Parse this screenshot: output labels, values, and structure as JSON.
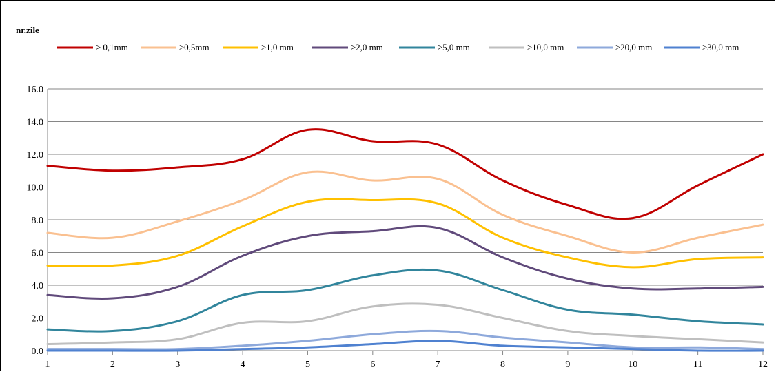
{
  "chart_data": {
    "type": "line",
    "ylabel": "nr.zile",
    "x": [
      1,
      2,
      3,
      4,
      5,
      6,
      7,
      8,
      9,
      10,
      11,
      12
    ],
    "x_tick_labels": [
      "1",
      "2",
      "3",
      "4",
      "5",
      "6",
      "7",
      "8",
      "9",
      "10",
      "11",
      "12"
    ],
    "ylim": [
      0,
      16
    ],
    "y_ticks": [
      0,
      2,
      4,
      6,
      8,
      10,
      12,
      14,
      16
    ],
    "y_tick_labels": [
      "0.0",
      "2.0",
      "4.0",
      "6.0",
      "8.0",
      "10.0",
      "12.0",
      "14.0",
      "16.0"
    ],
    "grid": true,
    "legend_position": "top",
    "series": [
      {
        "name": "≥ 0,1mm",
        "color": "#C00000",
        "values": [
          11.3,
          11.0,
          11.2,
          11.7,
          13.5,
          12.8,
          12.6,
          10.4,
          8.9,
          8.1,
          10.1,
          12.0
        ]
      },
      {
        "name": "≥0,5mm",
        "color": "#FAC090",
        "values": [
          7.2,
          6.9,
          7.9,
          9.2,
          10.9,
          10.4,
          10.5,
          8.3,
          7.0,
          6.0,
          6.9,
          7.7
        ]
      },
      {
        "name": "≥1,0 mm",
        "color": "#FFC000",
        "values": [
          5.2,
          5.2,
          5.8,
          7.6,
          9.1,
          9.2,
          9.0,
          6.9,
          5.7,
          5.1,
          5.6,
          5.7
        ]
      },
      {
        "name": "≥2,0 mm",
        "color": "#604A7B",
        "values": [
          3.4,
          3.2,
          3.9,
          5.8,
          7.0,
          7.3,
          7.5,
          5.7,
          4.4,
          3.8,
          3.8,
          3.9
        ]
      },
      {
        "name": "≥5,0 mm",
        "color": "#31859C",
        "values": [
          1.3,
          1.2,
          1.8,
          3.4,
          3.7,
          4.6,
          4.9,
          3.7,
          2.5,
          2.2,
          1.8,
          1.6
        ]
      },
      {
        "name": "≥10,0 mm",
        "color": "#BFBFBF",
        "values": [
          0.4,
          0.5,
          0.7,
          1.7,
          1.8,
          2.7,
          2.8,
          2.0,
          1.2,
          0.9,
          0.7,
          0.5
        ]
      },
      {
        "name": "≥20,0 mm",
        "color": "#8EA9DB",
        "values": [
          0.1,
          0.1,
          0.1,
          0.3,
          0.6,
          1.0,
          1.2,
          0.8,
          0.5,
          0.2,
          0.2,
          0.1
        ]
      },
      {
        "name": "≥30,0 mm",
        "color": "#4F81D0",
        "values": [
          0.0,
          0.0,
          0.0,
          0.1,
          0.2,
          0.4,
          0.6,
          0.3,
          0.2,
          0.1,
          0.0,
          0.0
        ]
      }
    ]
  }
}
